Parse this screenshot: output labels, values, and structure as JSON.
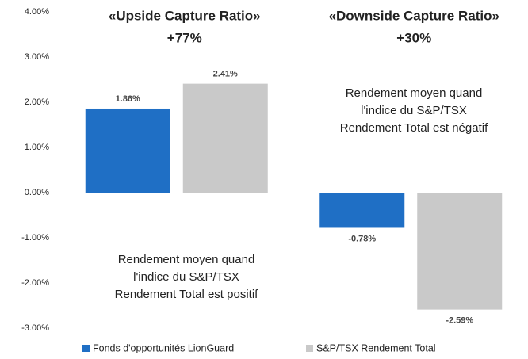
{
  "chart_data": {
    "type": "bar",
    "categories": [
      null,
      null
    ],
    "series": [
      {
        "name": "Fonds d'opportunités LionGuard",
        "color": "#1f6fc5",
        "values": [
          1.86,
          -0.78
        ],
        "value_labels": [
          "1.86%",
          "-0.78%"
        ]
      },
      {
        "name": "S&P/TSX Rendement Total",
        "color": "#c9c9c9",
        "values": [
          2.41,
          -2.59
        ],
        "value_labels": [
          "2.41%",
          "-2.59%"
        ]
      }
    ],
    "ylim": [
      -3,
      4
    ],
    "yticks": [
      {
        "value": -3,
        "label": "-3.00%"
      },
      {
        "value": -2,
        "label": "-2.00%"
      },
      {
        "value": -1,
        "label": "-1.00%"
      },
      {
        "value": 0,
        "label": "0.00%"
      },
      {
        "value": 1,
        "label": "1.00%"
      },
      {
        "value": 2,
        "label": "2.00%"
      },
      {
        "value": 3,
        "label": "3.00%"
      },
      {
        "value": 4,
        "label": "4.00%"
      }
    ],
    "grid": false,
    "legend": "bottom",
    "group_titles": [
      [
        "«Upside Capture Ratio»",
        "+77%"
      ],
      [
        "«Downside Capture Ratio»",
        "+30%"
      ]
    ],
    "notes": [
      [
        "Rendement moyen quand",
        "l'indice du S&P/TSX",
        "Rendement Total est positif"
      ],
      [
        "Rendement moyen quand",
        "l'indice du S&P/TSX",
        "Rendement Total est négatif"
      ]
    ]
  }
}
